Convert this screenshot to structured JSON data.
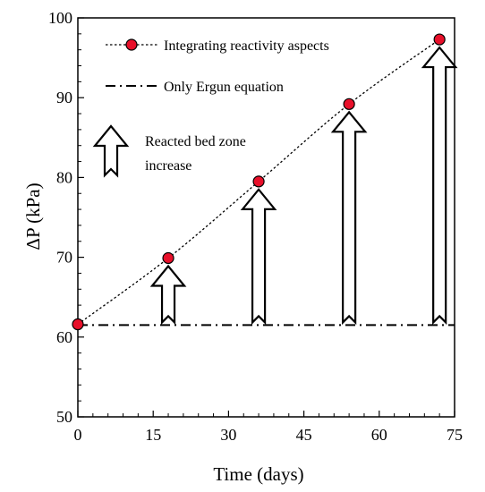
{
  "chart_data": {
    "type": "line",
    "xlabel": "Time (days)",
    "ylabel": "ΔP (kPa)",
    "xlim": [
      0,
      75
    ],
    "ylim": [
      50,
      100
    ],
    "xticks": [
      0,
      15,
      30,
      45,
      60,
      75
    ],
    "yticks": [
      50,
      60,
      70,
      80,
      90,
      100
    ],
    "grid": false,
    "legend_position": "top-right",
    "series": [
      {
        "name": "Integrating reactivity aspects",
        "style": "dotted line with red circle markers",
        "marker_color": "#e8102a",
        "x": [
          0,
          18,
          36,
          54,
          72
        ],
        "y": [
          61.6,
          69.9,
          79.5,
          89.2,
          97.3
        ]
      },
      {
        "name": "Only Ergun equation",
        "style": "dash-dot line",
        "x": [
          0,
          75
        ],
        "y": [
          61.5,
          61.5
        ]
      }
    ],
    "annotation": {
      "text_line1": "Reacted bed zone",
      "text_line2": "increase",
      "arrows_at_x": [
        18,
        36,
        54,
        72
      ]
    }
  }
}
